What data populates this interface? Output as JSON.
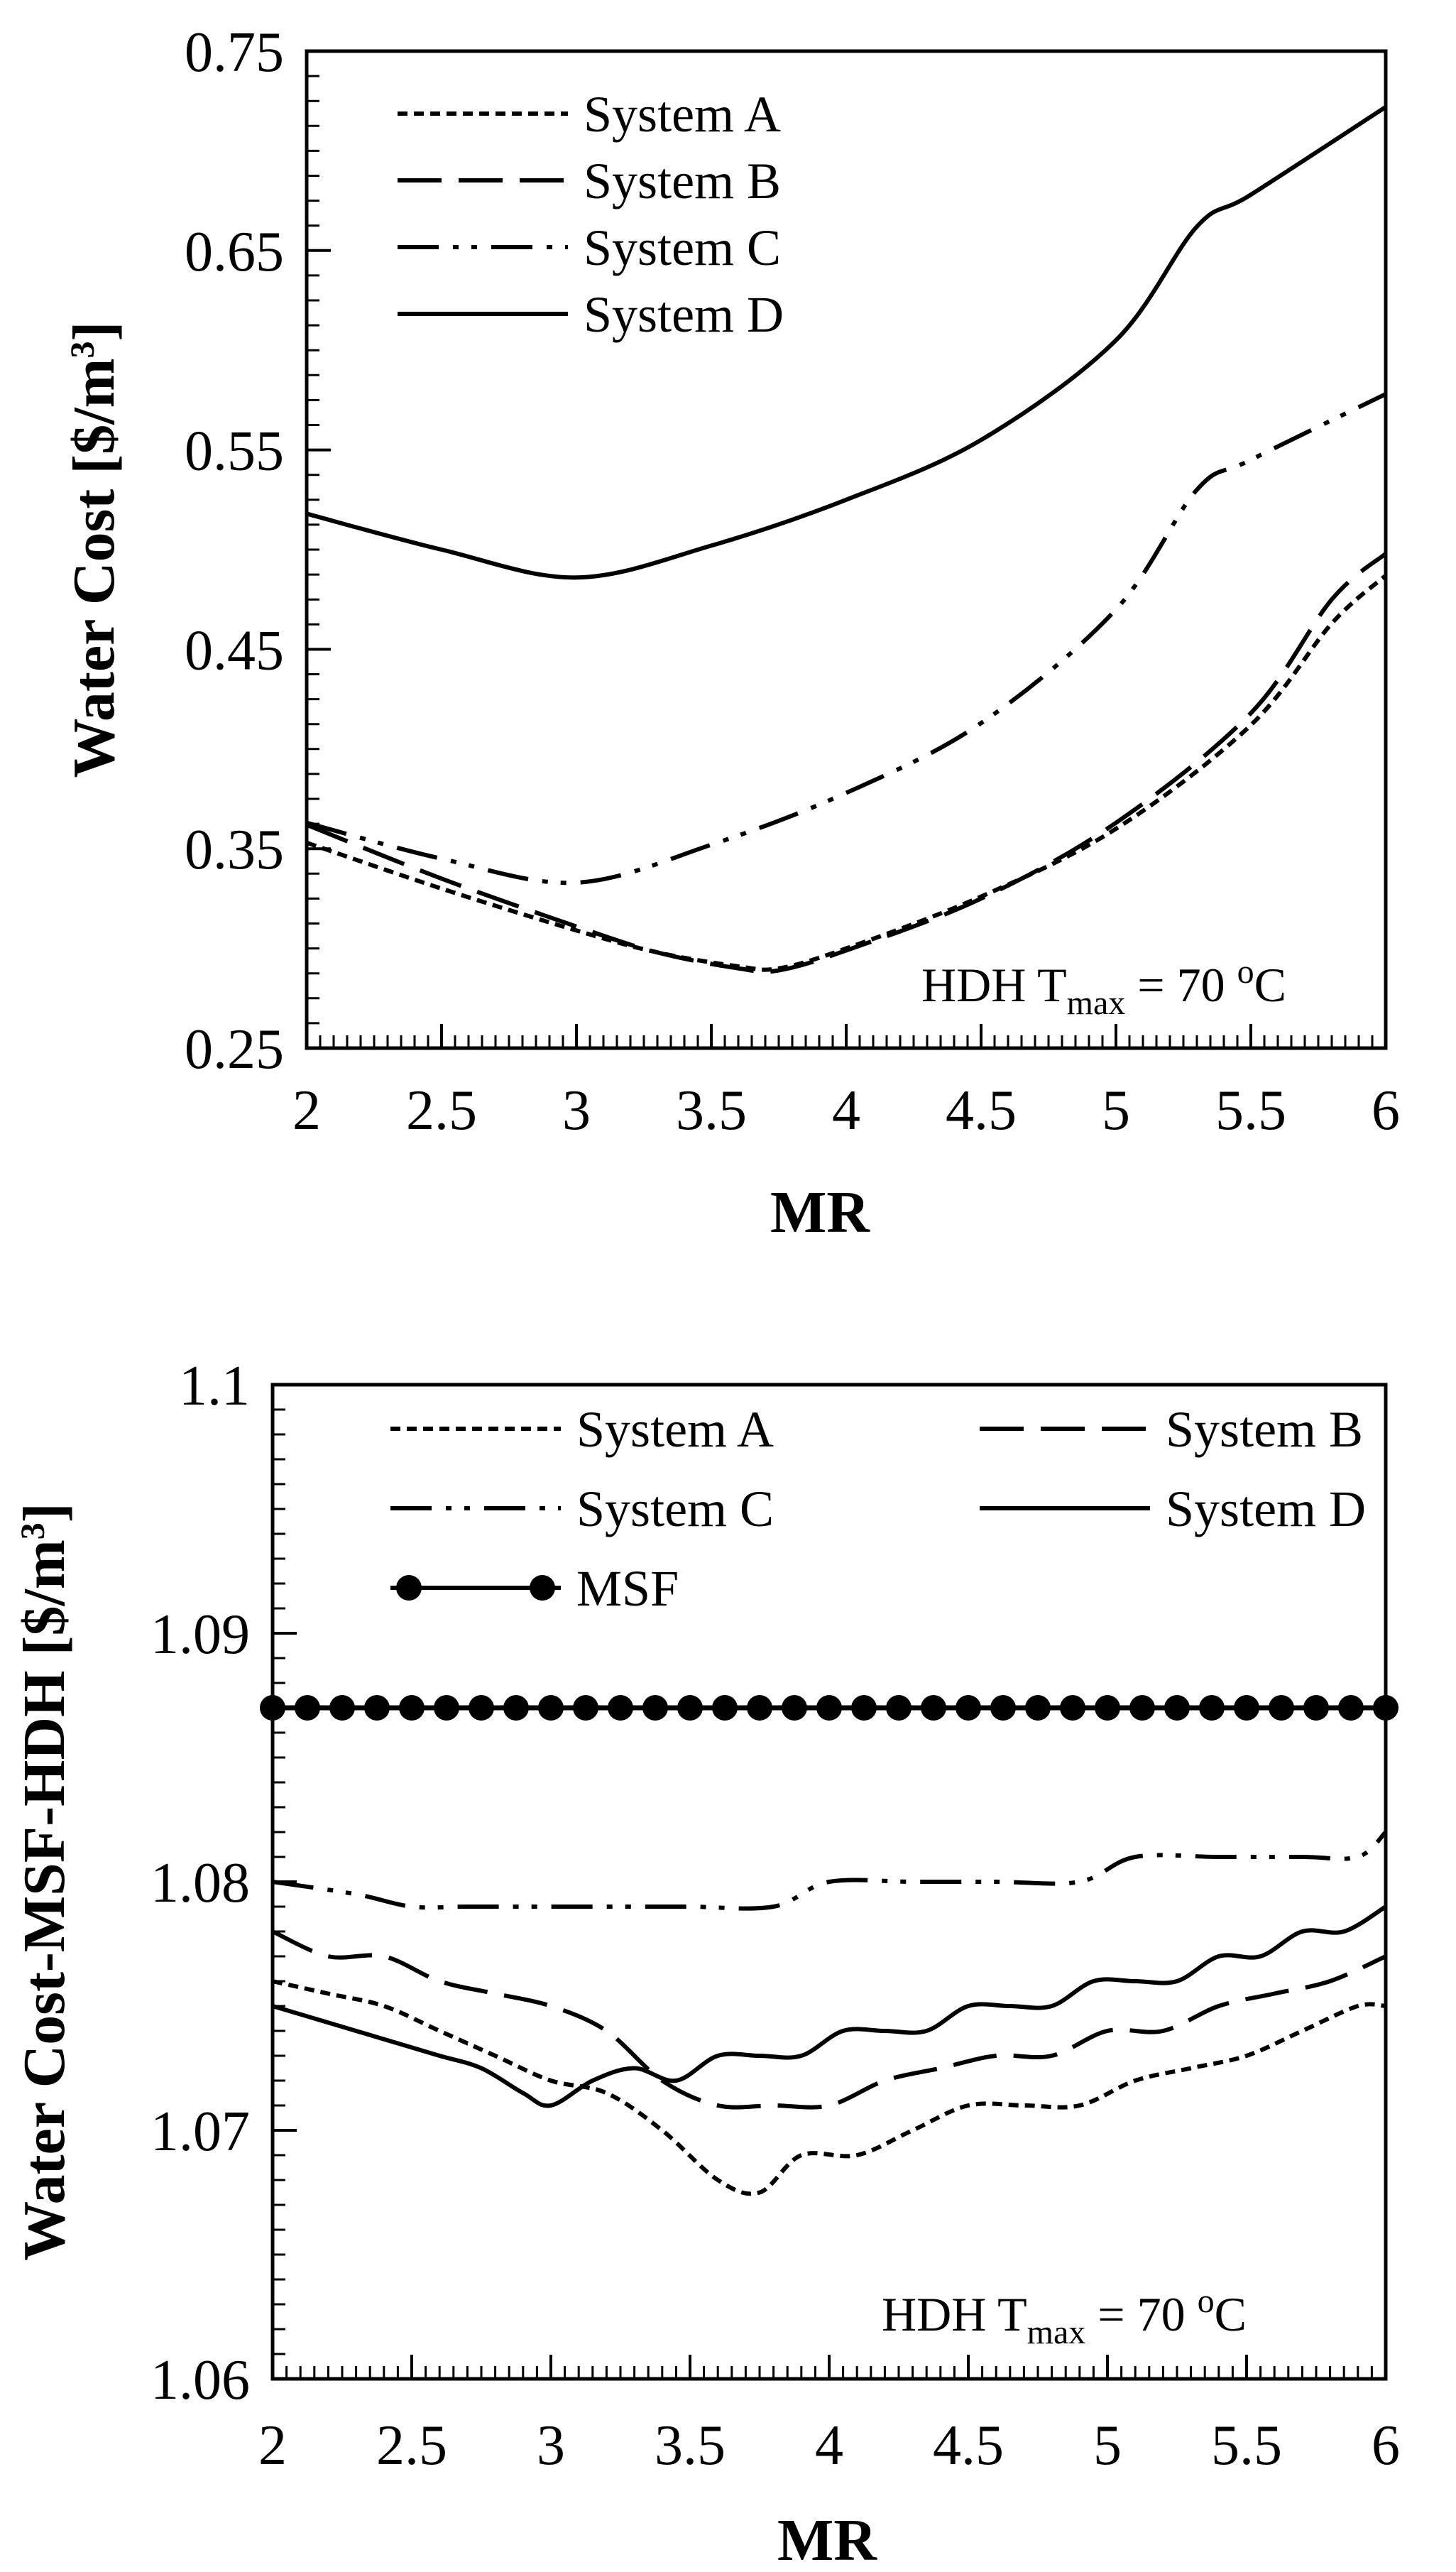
{
  "chart_data": [
    {
      "type": "line",
      "xlabel": "MR",
      "ylabel_main": "Water Cost [$/m",
      "ylabel_unit_sup": "3",
      "ylabel_close": "]",
      "xlim": [
        2,
        6
      ],
      "ylim": [
        0.25,
        0.75
      ],
      "xticks": [
        "2",
        "2.5",
        "3",
        "3.5",
        "4",
        "4.5",
        "5",
        "5.5",
        "6"
      ],
      "yticks": [
        "0.25",
        "0.35",
        "0.45",
        "0.55",
        "0.65",
        "0.75"
      ],
      "annotation": {
        "prefix": "HDH T",
        "sub": "max",
        "mid": " = 70 ",
        "sup": "o",
        "suffix": "C"
      },
      "series": [
        {
          "name": "System A",
          "style": "dotted",
          "x": [
            2,
            2.5,
            3,
            3.3,
            3.6,
            3.75,
            4,
            4.5,
            5,
            5.5,
            5.8,
            6
          ],
          "y": [
            0.353,
            0.33,
            0.309,
            0.298,
            0.291,
            0.29,
            0.3,
            0.326,
            0.36,
            0.412,
            0.463,
            0.487
          ]
        },
        {
          "name": "System B",
          "style": "dashed",
          "x": [
            2,
            2.5,
            3,
            3.3,
            3.6,
            3.75,
            4,
            4.5,
            5,
            5.5,
            5.8,
            6
          ],
          "y": [
            0.362,
            0.335,
            0.311,
            0.298,
            0.29,
            0.289,
            0.299,
            0.325,
            0.363,
            0.418,
            0.475,
            0.498
          ]
        },
        {
          "name": "System C",
          "style": "dash-dot-dot",
          "x": [
            2,
            2.5,
            3,
            3.5,
            4,
            4.5,
            5,
            5.3,
            5.5,
            6
          ],
          "y": [
            0.363,
            0.345,
            0.333,
            0.352,
            0.378,
            0.413,
            0.47,
            0.53,
            0.545,
            0.578
          ]
        },
        {
          "name": "System D",
          "style": "solid",
          "x": [
            2,
            2.5,
            3,
            3.5,
            4,
            4.5,
            5,
            5.3,
            5.5,
            6
          ],
          "y": [
            0.518,
            0.5,
            0.486,
            0.502,
            0.525,
            0.555,
            0.605,
            0.662,
            0.678,
            0.722
          ]
        }
      ]
    },
    {
      "type": "line",
      "xlabel": "MR",
      "ylabel_main": "Water Cost-MSF-HDH [$/m",
      "ylabel_unit_sup": "3",
      "ylabel_close": "]",
      "xlim": [
        2,
        6
      ],
      "ylim": [
        1.06,
        1.1
      ],
      "xticks": [
        "2",
        "2.5",
        "3",
        "3.5",
        "4",
        "4.5",
        "5",
        "5.5",
        "6"
      ],
      "yticks": [
        "1.06",
        "1.07",
        "1.08",
        "1.09",
        "1.1"
      ],
      "annotation": {
        "prefix": "HDH T",
        "sub": "max",
        "mid": " = 70 ",
        "sup": "o",
        "suffix": "C"
      },
      "series": [
        {
          "name": "System A",
          "style": "dotted",
          "x": [
            2,
            2.2,
            2.4,
            2.6,
            2.8,
            3,
            3.2,
            3.4,
            3.6,
            3.75,
            3.9,
            4.1,
            4.3,
            4.5,
            4.7,
            4.9,
            5.1,
            5.3,
            5.5,
            5.7,
            5.9,
            6
          ],
          "y": [
            1.076,
            1.0755,
            1.075,
            1.074,
            1.073,
            1.072,
            1.0715,
            1.07,
            1.068,
            1.0675,
            1.069,
            1.069,
            1.07,
            1.071,
            1.071,
            1.071,
            1.072,
            1.0725,
            1.073,
            1.074,
            1.075,
            1.075
          ]
        },
        {
          "name": "System B",
          "style": "dashed",
          "x": [
            2,
            2.2,
            2.4,
            2.6,
            2.8,
            3,
            3.2,
            3.4,
            3.6,
            3.8,
            4,
            4.2,
            4.4,
            4.6,
            4.8,
            5,
            5.2,
            5.4,
            5.6,
            5.8,
            6
          ],
          "y": [
            1.078,
            1.077,
            1.077,
            1.076,
            1.0755,
            1.075,
            1.074,
            1.072,
            1.071,
            1.071,
            1.071,
            1.072,
            1.0725,
            1.073,
            1.073,
            1.074,
            1.074,
            1.075,
            1.0755,
            1.076,
            1.077
          ]
        },
        {
          "name": "System C",
          "style": "dash-dot-dot",
          "x": [
            2,
            2.3,
            2.5,
            2.7,
            3,
            3.3,
            3.5,
            3.8,
            4,
            4.3,
            4.6,
            4.9,
            5.1,
            5.4,
            5.7,
            5.9,
            6
          ],
          "y": [
            1.08,
            1.0795,
            1.079,
            1.079,
            1.079,
            1.079,
            1.079,
            1.079,
            1.08,
            1.08,
            1.08,
            1.08,
            1.081,
            1.081,
            1.081,
            1.081,
            1.082
          ]
        },
        {
          "name": "System D",
          "style": "solid",
          "x": [
            2,
            2.15,
            2.3,
            2.45,
            2.6,
            2.75,
            2.9,
            3.0,
            3.15,
            3.3,
            3.45,
            3.6,
            3.75,
            3.9,
            4.05,
            4.2,
            4.35,
            4.5,
            4.65,
            4.8,
            4.95,
            5.1,
            5.25,
            5.4,
            5.55,
            5.7,
            5.85,
            6
          ],
          "y": [
            1.075,
            1.0745,
            1.074,
            1.0735,
            1.073,
            1.0725,
            1.0715,
            1.071,
            1.072,
            1.0725,
            1.072,
            1.073,
            1.073,
            1.073,
            1.074,
            1.074,
            1.074,
            1.075,
            1.075,
            1.075,
            1.076,
            1.076,
            1.076,
            1.077,
            1.077,
            1.078,
            1.078,
            1.079
          ]
        },
        {
          "name": "MSF",
          "style": "solid-markers",
          "x": [
            2,
            6
          ],
          "y": [
            1.087,
            1.087
          ],
          "marker_count": 33
        }
      ]
    }
  ]
}
